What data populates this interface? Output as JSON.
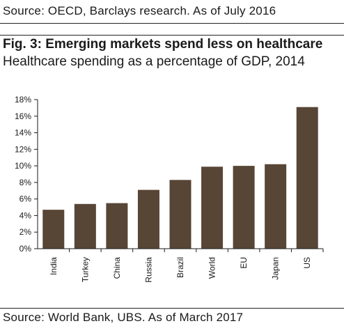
{
  "header": {
    "source": "Source: OECD, Barclays research. As of July 2016"
  },
  "figure": {
    "title": "Fig. 3: Emerging markets spend less on healthcare",
    "subtitle": "Healthcare spending as a percentage of GDP, 2014"
  },
  "footer": {
    "source": "Source: World Bank, UBS. As of March 2017"
  },
  "colors": {
    "bar": "#574536",
    "axis": "#1a1a1a"
  },
  "chart_data": {
    "type": "bar",
    "categories": [
      "India",
      "Turkey",
      "China",
      "Russia",
      "Brazil",
      "World",
      "EU",
      "Japan",
      "US"
    ],
    "values": [
      4.7,
      5.4,
      5.5,
      7.1,
      8.3,
      9.9,
      10.0,
      10.2,
      17.1
    ],
    "ylim": [
      0,
      18
    ],
    "yticks": [
      "0%",
      "2%",
      "4%",
      "6%",
      "8%",
      "10%",
      "12%",
      "14%",
      "16%",
      "18%"
    ],
    "xlabel": "",
    "ylabel": "",
    "grid": false
  }
}
